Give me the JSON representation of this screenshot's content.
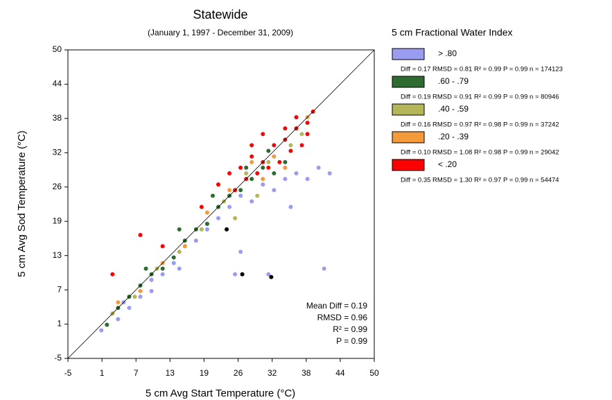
{
  "chart_data": {
    "type": "scatter",
    "title": "Statewide",
    "subtitle": "(January 1, 1997 - December 31, 2009)",
    "x_label": "5 cm Avg Start Temperature (°C)",
    "y_label": "5 cm Avg Sod Temperature (°C)",
    "legend_title": "5 cm Fractional Water Index",
    "xlim": [
      -5,
      50
    ],
    "ylim": [
      -5,
      50
    ],
    "xticks": [
      -5,
      {
        "value": 1.11,
        "label": "1"
      },
      {
        "value": 7.22,
        "label": "7"
      },
      {
        "value": 13.33,
        "label": "13"
      },
      {
        "value": 19.44,
        "label": "19"
      },
      {
        "value": 25.56,
        "label": "26"
      },
      {
        "value": 31.67,
        "label": "32"
      },
      {
        "value": 37.78,
        "label": "38"
      },
      {
        "value": 43.89,
        "label": "44"
      },
      50
    ],
    "yticks": [
      -5,
      {
        "value": 1.11,
        "label": "1"
      },
      {
        "value": 7.22,
        "label": "7"
      },
      {
        "value": 13.33,
        "label": "13"
      },
      {
        "value": 19.44,
        "label": "19"
      },
      {
        "value": 25.56,
        "label": "26"
      },
      {
        "value": 31.67,
        "label": "32"
      },
      {
        "value": 37.78,
        "label": "38"
      },
      {
        "value": 43.89,
        "label": "44"
      },
      50
    ],
    "reference_line": true,
    "annotations": [
      "Mean Diff = 0.19",
      "RMSD = 0.96",
      "R² = 0.99",
      "P = 0.99"
    ],
    "series": [
      {
        "name": "> .80",
        "stats": "Diff = 0.17  RMSD = 0.81  R² = 0.99  P = 0.99  n = 174123",
        "color": "#9a9cf0",
        "x": [
          1,
          2,
          3,
          4,
          5,
          6,
          8,
          10,
          12,
          14,
          16,
          18,
          20,
          22,
          24,
          26,
          28,
          30,
          32,
          34,
          36,
          38,
          40,
          42,
          25,
          26,
          31,
          41,
          35,
          20,
          15,
          10
        ],
        "values": [
          0,
          1,
          3,
          2,
          5,
          4,
          6,
          9,
          10,
          12,
          15,
          16,
          19,
          20,
          22,
          24,
          23,
          26,
          25,
          27,
          28,
          27,
          29,
          28,
          10,
          14,
          10,
          11,
          22,
          18,
          11,
          7
        ]
      },
      {
        "name": ".60 - .79",
        "stats": "Diff = 0.19  RMSD = 0.91  R² = 0.99  P = 0.99  n = 80946",
        "color": "#2e6b30",
        "x": [
          2,
          4,
          6,
          8,
          10,
          12,
          14,
          16,
          18,
          20,
          22,
          24,
          26,
          28,
          30,
          32,
          34,
          9,
          15,
          21,
          27,
          31
        ],
        "values": [
          1,
          4,
          6,
          8,
          10,
          11,
          13,
          16,
          18,
          19,
          22,
          24,
          25,
          27,
          29,
          28,
          30,
          11,
          18,
          24,
          29,
          32
        ]
      },
      {
        "name": ".40 - .59",
        "stats": "Diff = 0.16  RMSD = 0.97  R² = 0.98  P = 0.99  n = 37242",
        "color": "#b5b55a",
        "x": [
          3,
          7,
          11,
          15,
          19,
          23,
          27,
          31,
          35,
          37,
          25,
          29
        ],
        "values": [
          3,
          6,
          11,
          14,
          18,
          23,
          28,
          30,
          33,
          35,
          20,
          24
        ]
      },
      {
        "name": ".20 - .39",
        "stats": "Diff = 0.10  RMSD = 1.08  R² = 0.98  P = 0.99  n = 29042",
        "color": "#f59a3a",
        "x": [
          4,
          8,
          12,
          16,
          20,
          24,
          28,
          32,
          36,
          38,
          22,
          30,
          34
        ],
        "values": [
          5,
          7,
          12,
          15,
          21,
          25,
          30,
          31,
          36,
          38,
          26,
          27,
          29
        ]
      },
      {
        "name": "< .20",
        "stats": "Diff = 0.35  RMSD = 1.30  R² = 0.97  P = 0.99  n = 54474",
        "color": "#ff0000",
        "x": [
          22,
          24,
          26,
          28,
          30,
          32,
          34,
          36,
          38,
          39,
          25,
          27,
          29,
          31,
          33,
          35,
          37,
          38,
          36,
          34,
          30,
          28,
          3,
          8,
          12,
          19
        ],
        "values": [
          26,
          28,
          29,
          31,
          30,
          33,
          34,
          36,
          37,
          39,
          25,
          27,
          28,
          29,
          30,
          32,
          33,
          35,
          38,
          36,
          35,
          33,
          10,
          17,
          15,
          22
        ]
      },
      {
        "color": "#000000",
        "x": [
          26.3,
          31.5,
          23.5
        ],
        "values": [
          10,
          9.5,
          18
        ]
      }
    ]
  }
}
